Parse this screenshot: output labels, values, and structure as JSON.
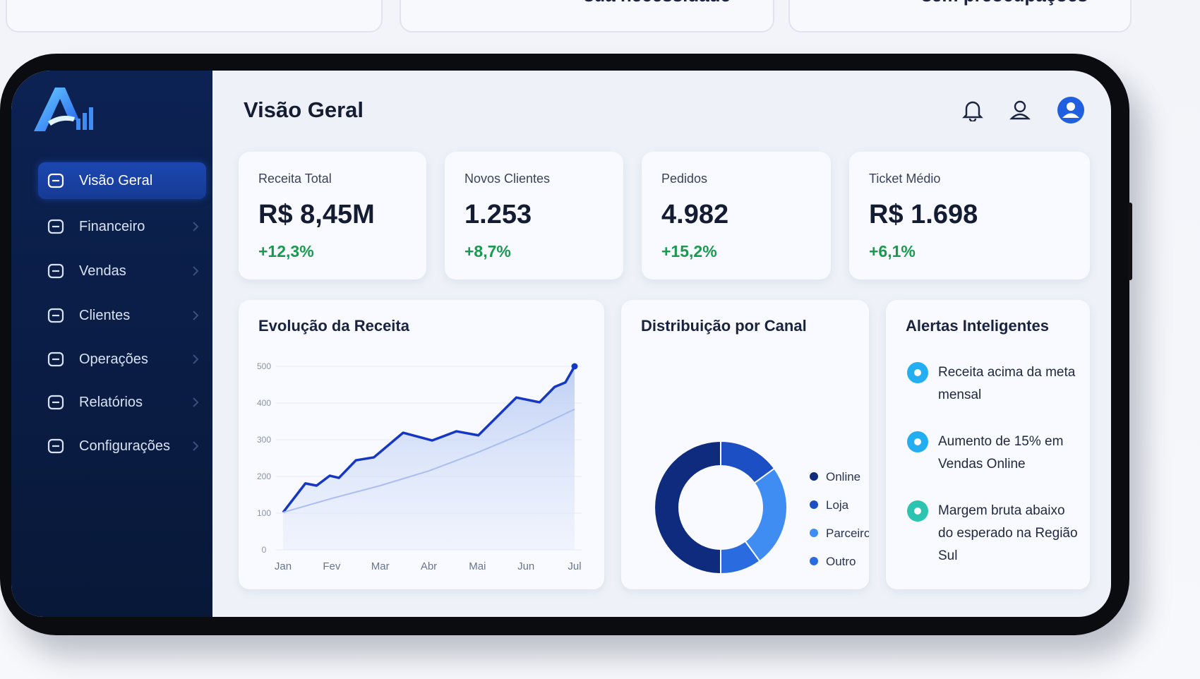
{
  "top_cards": [
    "sua necessidade",
    "sem preocupações"
  ],
  "sidebar": {
    "nav": [
      "Visão Geral",
      "Financeiro",
      "Vendas",
      "Clientes",
      "Operações",
      "Relatórios",
      "Configurações"
    ],
    "active": 0
  },
  "header": {
    "title": "Visão Geral"
  },
  "kpis": [
    {
      "label": "Receita Total",
      "value": "R$ 8,45M",
      "change": "+12,3%"
    },
    {
      "label": "Novos Clientes",
      "value": "1.253",
      "change": "+8,7%"
    },
    {
      "label": "Pedidos",
      "value": "4.982",
      "change": "+15,2%"
    },
    {
      "label": "Ticket Médio",
      "value": "R$ 1.698",
      "change": "+6,1%"
    }
  ],
  "revenue_chart": {
    "type": "line",
    "title": "Evolução da Receita",
    "xlim": [
      0,
      6
    ],
    "xticks": [
      {
        "value": 0,
        "label": "Jan"
      },
      {
        "value": 1,
        "label": "Fev"
      },
      {
        "value": 2,
        "label": "Mar"
      },
      {
        "value": 3,
        "label": "Abr"
      },
      {
        "value": 4,
        "label": "Mai"
      },
      {
        "value": 5,
        "label": "Jun"
      },
      {
        "value": 6,
        "label": "Jul"
      }
    ],
    "ylim": [
      0,
      500
    ],
    "yticks": [
      0,
      100,
      200,
      300,
      400,
      500
    ],
    "grid": true,
    "series": [
      {
        "color": "#1537c2",
        "x": [
          0,
          0.46,
          0.69,
          0.96,
          1.15,
          1.5,
          1.87,
          2.47,
          3.07,
          3.57,
          4.02,
          4.8,
          5.28,
          5.59,
          5.81,
          6
        ],
        "values": [
          102,
          181,
          175,
          202,
          196,
          244,
          252,
          319,
          298,
          323,
          312,
          415,
          402,
          444,
          456,
          500
        ]
      },
      {
        "color": "#a9bdf0",
        "x": [
          0,
          1,
          2,
          3,
          4,
          5,
          6
        ],
        "values": [
          102,
          140,
          175,
          215,
          265,
          320,
          383
        ]
      }
    ]
  },
  "channel_chart": {
    "type": "pie",
    "title": "Distribuição por Canal",
    "categories": [
      "Online",
      "Loja",
      "Parceiros",
      "Outro"
    ],
    "values": [
      50,
      15,
      25,
      10
    ],
    "colors": [
      "#0e2b7e",
      "#1d4fc4",
      "#3f8cf2",
      "#2a6be0"
    ]
  },
  "alerts": {
    "title": "Alertas Inteligentes",
    "items": [
      {
        "text": "Receita acima da meta mensal",
        "color": "#22aef0"
      },
      {
        "text": "Aumento de 15% em Vendas Online",
        "color": "#22aef0"
      },
      {
        "text": "Margem bruta abaixo do esperado na Região Sul",
        "color": "#2cc4ae"
      }
    ]
  }
}
